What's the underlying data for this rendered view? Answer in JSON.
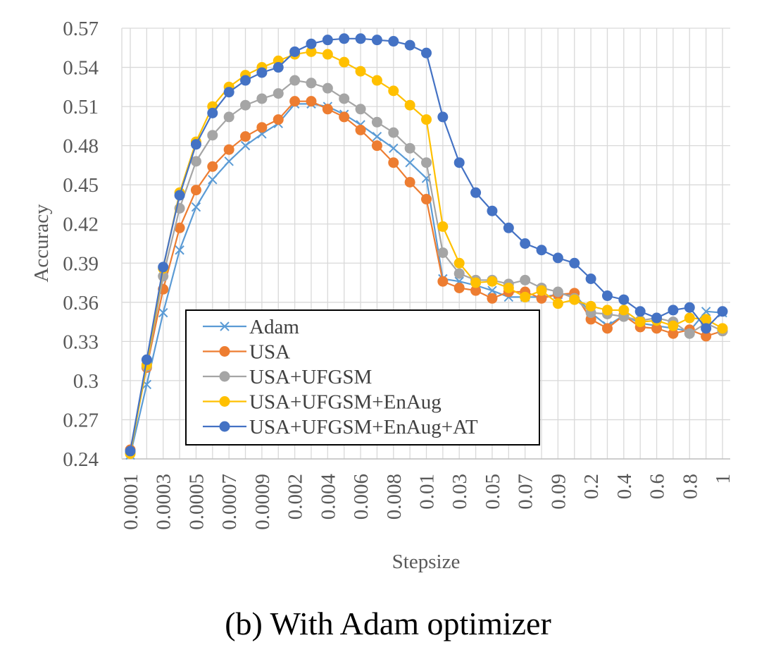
{
  "chart_data": {
    "type": "line",
    "caption": "(b) With Adam optimizer",
    "xlabel": "Stepsize",
    "ylabel": "Accuracy",
    "ylim": [
      0.24,
      0.57
    ],
    "yticks": [
      "0.24",
      "0.27",
      "0.3",
      "0.33",
      "0.36",
      "0.39",
      "0.42",
      "0.45",
      "0.48",
      "0.51",
      "0.54",
      "0.57"
    ],
    "grid": true,
    "legend_position": "lower-left-center",
    "x": [
      "0.0001",
      "0.0002",
      "0.0003",
      "0.0004",
      "0.0005",
      "0.0006",
      "0.0007",
      "0.0008",
      "0.0009",
      "0.001",
      "0.002",
      "0.003",
      "0.004",
      "0.005",
      "0.006",
      "0.007",
      "0.008",
      "0.009",
      "0.01",
      "0.02",
      "0.03",
      "0.04",
      "0.05",
      "0.06",
      "0.07",
      "0.08",
      "0.09",
      "0.1",
      "0.2",
      "0.3",
      "0.4",
      "0.5",
      "0.6",
      "0.7",
      "0.8",
      "0.9",
      "1"
    ],
    "xtick_labels": [
      "0.0001",
      "",
      "0.0003",
      "",
      "0.0005",
      "",
      "0.0007",
      "",
      "0.0009",
      "",
      "0.002",
      "",
      "0.004",
      "",
      "0.006",
      "",
      "0.008",
      "",
      "0.01",
      "",
      "0.03",
      "",
      "0.05",
      "",
      "0.07",
      "",
      "0.09",
      "",
      "0.2",
      "",
      "0.4",
      "",
      "0.6",
      "",
      "0.8",
      "",
      "1"
    ],
    "series": [
      {
        "name": "Adam",
        "color": "#5B9BD5",
        "marker": "x",
        "values": [
          0.243,
          0.297,
          0.352,
          0.4,
          0.433,
          0.454,
          0.468,
          0.48,
          0.489,
          0.497,
          0.512,
          0.512,
          0.51,
          0.504,
          0.496,
          0.487,
          0.478,
          0.467,
          0.455,
          0.378,
          0.376,
          0.373,
          0.369,
          0.364,
          0.364,
          0.364,
          0.366,
          0.366,
          0.352,
          0.342,
          0.35,
          0.344,
          0.342,
          0.34,
          0.338,
          0.353,
          0.352
        ]
      },
      {
        "name": "USA",
        "color": "#ED7D31",
        "marker": "circle",
        "values": [
          0.247,
          0.31,
          0.37,
          0.417,
          0.446,
          0.464,
          0.477,
          0.487,
          0.494,
          0.5,
          0.514,
          0.514,
          0.508,
          0.502,
          0.492,
          0.48,
          0.467,
          0.452,
          0.439,
          0.376,
          0.371,
          0.369,
          0.363,
          0.368,
          0.368,
          0.363,
          0.366,
          0.367,
          0.347,
          0.34,
          0.35,
          0.341,
          0.34,
          0.336,
          0.339,
          0.334,
          0.338
        ]
      },
      {
        "name": "USA+UFGSM",
        "color": "#A5A5A5",
        "marker": "circle",
        "values": [
          0.245,
          0.311,
          0.38,
          0.432,
          0.468,
          0.488,
          0.502,
          0.511,
          0.516,
          0.52,
          0.53,
          0.528,
          0.524,
          0.516,
          0.508,
          0.498,
          0.49,
          0.478,
          0.467,
          0.398,
          0.382,
          0.377,
          0.377,
          0.374,
          0.377,
          0.371,
          0.368,
          0.363,
          0.352,
          0.351,
          0.349,
          0.346,
          0.348,
          0.345,
          0.336,
          0.344,
          0.338
        ]
      },
      {
        "name": "USA+UFGSM+EnAug",
        "color": "#FFC000",
        "marker": "circle",
        "values": [
          0.244,
          0.312,
          0.386,
          0.444,
          0.483,
          0.51,
          0.525,
          0.534,
          0.54,
          0.545,
          0.55,
          0.552,
          0.55,
          0.544,
          0.537,
          0.53,
          0.522,
          0.511,
          0.5,
          0.418,
          0.39,
          0.375,
          0.376,
          0.371,
          0.364,
          0.369,
          0.359,
          0.362,
          0.357,
          0.354,
          0.354,
          0.345,
          0.346,
          0.342,
          0.348,
          0.347,
          0.34
        ]
      },
      {
        "name": "USA+UFGSM+EnAug+AT",
        "color": "#4472C4",
        "marker": "circle",
        "values": [
          0.246,
          0.316,
          0.387,
          0.442,
          0.481,
          0.505,
          0.521,
          0.53,
          0.536,
          0.54,
          0.552,
          0.558,
          0.561,
          0.562,
          0.562,
          0.561,
          0.56,
          0.557,
          0.551,
          0.502,
          0.467,
          0.444,
          0.43,
          0.417,
          0.405,
          0.4,
          0.394,
          0.39,
          0.378,
          0.365,
          0.362,
          0.353,
          0.348,
          0.354,
          0.356,
          0.34,
          0.353
        ]
      }
    ]
  }
}
